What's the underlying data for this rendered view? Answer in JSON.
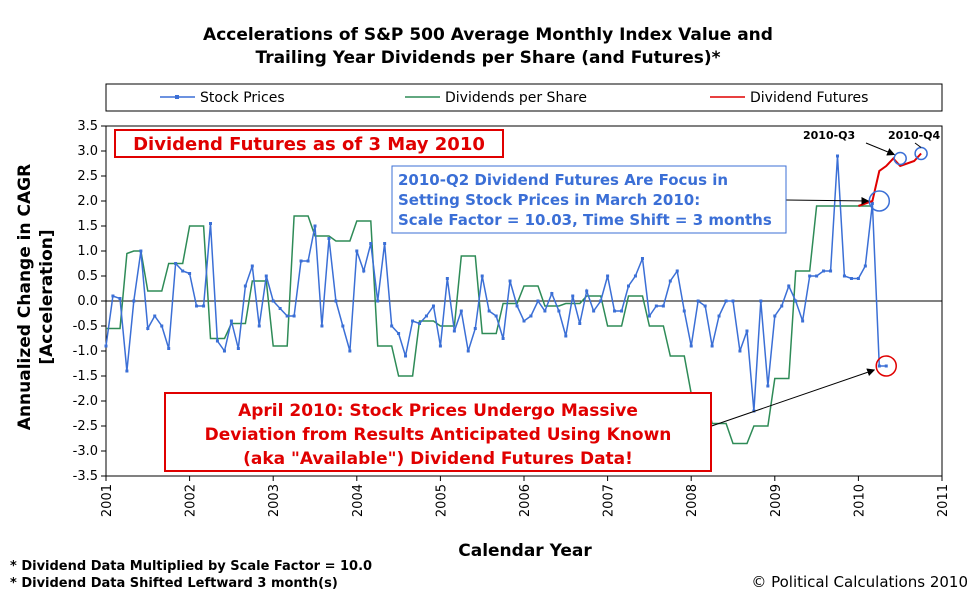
{
  "title_line1": "Accelerations of S&P 500 Average Monthly Index Value and",
  "title_line2": "Trailing Year Dividends per Share (and Futures)*",
  "legend": [
    {
      "label": "Stock Prices",
      "color": "#3b6fd6",
      "marker": true
    },
    {
      "label": "Dividends per Share",
      "color": "#2e8b57",
      "marker": false
    },
    {
      "label": "Dividend Futures",
      "color": "#e00000",
      "marker": false
    }
  ],
  "ylabel_line1": "Annualized Change in CAGR",
  "ylabel_line2": "[Acceleration]",
  "xlabel": "Calendar Year",
  "footnotes": [
    "* Dividend Data Multiplied by Scale Factor = 10.0",
    "* Dividend Data Shifted Leftward 3 month(s)"
  ],
  "credit": "© Political Calculations 2010",
  "annotations": {
    "futures_date": "Dividend Futures as of 3 May 2010",
    "q2_focus": [
      "2010-Q2 Dividend Futures Are Focus in",
      "Setting Stock Prices in March 2010:",
      "Scale Factor = 10.03, Time Shift = 3 months"
    ],
    "april": [
      "April 2010: Stock Prices Undergo Massive",
      "Deviation from Results Anticipated Using Known",
      "(aka \"Available\") Dividend Futures Data!"
    ],
    "q3": "2010-Q3",
    "q4": "2010-Q4"
  },
  "chart_data": {
    "type": "line",
    "title": "Accelerations of S&P 500 Average Monthly Index Value and Trailing Year Dividends per Share (and Futures)*",
    "xlabel": "Calendar Year",
    "ylabel": "Annualized Change in CAGR [Acceleration]",
    "xlim": [
      2001,
      2011
    ],
    "ylim": [
      -3.5,
      3.5
    ],
    "xticks": [
      "2001",
      "2002",
      "2003",
      "2004",
      "2005",
      "2006",
      "2007",
      "2008",
      "2009",
      "2010",
      "2011"
    ],
    "yticks": [
      "-3.5",
      "-3.0",
      "-2.5",
      "-2.0",
      "-1.5",
      "-1.0",
      "-0.5",
      "0.0",
      "0.5",
      "1.0",
      "1.5",
      "2.0",
      "2.5",
      "3.0",
      "3.5"
    ],
    "series": [
      {
        "name": "Stock Prices",
        "color": "#3b6fd6",
        "x": [
          2001.0,
          2001.083,
          2001.167,
          2001.25,
          2001.333,
          2001.417,
          2001.5,
          2001.583,
          2001.667,
          2001.75,
          2001.833,
          2001.917,
          2002.0,
          2002.083,
          2002.167,
          2002.25,
          2002.333,
          2002.417,
          2002.5,
          2002.583,
          2002.667,
          2002.75,
          2002.833,
          2002.917,
          2003.0,
          2003.083,
          2003.167,
          2003.25,
          2003.333,
          2003.417,
          2003.5,
          2003.583,
          2003.667,
          2003.75,
          2003.833,
          2003.917,
          2004.0,
          2004.083,
          2004.167,
          2004.25,
          2004.333,
          2004.417,
          2004.5,
          2004.583,
          2004.667,
          2004.75,
          2004.833,
          2004.917,
          2005.0,
          2005.083,
          2005.167,
          2005.25,
          2005.333,
          2005.417,
          2005.5,
          2005.583,
          2005.667,
          2005.75,
          2005.833,
          2005.917,
          2006.0,
          2006.083,
          2006.167,
          2006.25,
          2006.333,
          2006.417,
          2006.5,
          2006.583,
          2006.667,
          2006.75,
          2006.833,
          2006.917,
          2007.0,
          2007.083,
          2007.167,
          2007.25,
          2007.333,
          2007.417,
          2007.5,
          2007.583,
          2007.667,
          2007.75,
          2007.833,
          2007.917,
          2008.0,
          2008.083,
          2008.167,
          2008.25,
          2008.333,
          2008.417,
          2008.5,
          2008.583,
          2008.667,
          2008.75,
          2008.833,
          2008.917,
          2009.0,
          2009.083,
          2009.167,
          2009.25,
          2009.333,
          2009.417,
          2009.5,
          2009.583,
          2009.667,
          2009.75,
          2009.833,
          2009.917,
          2010.0,
          2010.083,
          2010.167,
          2010.25,
          2010.333
        ],
        "y": [
          -0.9,
          0.1,
          0.05,
          -1.4,
          0.0,
          1.0,
          -0.55,
          -0.3,
          -0.5,
          -0.95,
          0.75,
          0.6,
          0.55,
          -0.1,
          -0.1,
          1.55,
          -0.8,
          -1.0,
          -0.4,
          -0.95,
          0.3,
          0.7,
          -0.5,
          0.5,
          0.0,
          -0.15,
          -0.3,
          -0.3,
          0.8,
          0.8,
          1.5,
          -0.5,
          1.25,
          0.0,
          -0.5,
          -1.0,
          1.0,
          0.6,
          1.15,
          0.0,
          1.15,
          -0.5,
          -0.65,
          -1.1,
          -0.4,
          -0.45,
          -0.3,
          -0.1,
          -0.9,
          0.45,
          -0.6,
          -0.2,
          -1.0,
          -0.55,
          0.5,
          -0.2,
          -0.3,
          -0.75,
          0.4,
          -0.1,
          -0.4,
          -0.3,
          0.0,
          -0.2,
          0.15,
          -0.2,
          -0.7,
          0.1,
          -0.45,
          0.2,
          -0.2,
          0.0,
          0.5,
          -0.2,
          -0.2,
          0.3,
          0.5,
          0.85,
          -0.3,
          -0.1,
          -0.1,
          0.4,
          0.6,
          -0.2,
          -0.9,
          0.0,
          -0.1,
          -0.9,
          -0.3,
          0.0,
          0.0,
          -1.0,
          -0.6,
          -2.2,
          0.0,
          -1.7,
          -0.3,
          -0.1,
          0.3,
          0.0,
          -0.4,
          0.5,
          0.5,
          0.6,
          0.6,
          2.9,
          0.5,
          0.45,
          0.45,
          0.7,
          1.95,
          -1.3,
          -1.3
        ],
        "markers": true
      },
      {
        "name": "Dividends per Share",
        "color": "#2e8b57",
        "x": [
          2001.0,
          2001.083,
          2001.167,
          2001.25,
          2001.333,
          2001.417,
          2001.5,
          2001.583,
          2001.667,
          2001.75,
          2001.833,
          2001.917,
          2002.0,
          2002.083,
          2002.167,
          2002.25,
          2002.333,
          2002.417,
          2002.5,
          2002.583,
          2002.667,
          2002.75,
          2002.833,
          2002.917,
          2003.0,
          2003.083,
          2003.167,
          2003.25,
          2003.333,
          2003.417,
          2003.5,
          2003.583,
          2003.667,
          2003.75,
          2003.833,
          2003.917,
          2004.0,
          2004.083,
          2004.167,
          2004.25,
          2004.333,
          2004.417,
          2004.5,
          2004.583,
          2004.667,
          2004.75,
          2004.833,
          2004.917,
          2005.0,
          2005.083,
          2005.167,
          2005.25,
          2005.333,
          2005.417,
          2005.5,
          2005.583,
          2005.667,
          2005.75,
          2005.833,
          2005.917,
          2006.0,
          2006.083,
          2006.167,
          2006.25,
          2006.333,
          2006.417,
          2006.5,
          2006.583,
          2006.667,
          2006.75,
          2006.833,
          2006.917,
          2007.0,
          2007.083,
          2007.167,
          2007.25,
          2007.333,
          2007.417,
          2007.5,
          2007.583,
          2007.667,
          2007.75,
          2007.833,
          2007.917,
          2008.0,
          2008.083,
          2008.167,
          2008.25,
          2008.333,
          2008.417,
          2008.5,
          2008.583,
          2008.667,
          2008.75,
          2008.833,
          2008.917,
          2009.0,
          2009.083,
          2009.167,
          2009.25,
          2009.333,
          2009.417,
          2009.5,
          2009.583,
          2009.667,
          2009.75,
          2009.833,
          2009.917,
          2010.0,
          2010.083,
          2010.167
        ],
        "y": [
          -0.55,
          -0.55,
          -0.55,
          0.95,
          1.0,
          1.0,
          0.2,
          0.2,
          0.2,
          0.75,
          0.75,
          0.75,
          1.5,
          1.5,
          1.5,
          -0.75,
          -0.75,
          -0.75,
          -0.45,
          -0.45,
          -0.45,
          0.4,
          0.4,
          0.4,
          -0.9,
          -0.9,
          -0.9,
          1.7,
          1.7,
          1.7,
          1.3,
          1.3,
          1.3,
          1.2,
          1.2,
          1.2,
          1.6,
          1.6,
          1.6,
          -0.9,
          -0.9,
          -0.9,
          -1.5,
          -1.5,
          -1.5,
          -0.4,
          -0.4,
          -0.4,
          -0.5,
          -0.5,
          -0.5,
          0.9,
          0.9,
          0.9,
          -0.65,
          -0.65,
          -0.65,
          -0.05,
          -0.05,
          -0.05,
          0.3,
          0.3,
          0.3,
          -0.1,
          -0.1,
          -0.1,
          -0.05,
          -0.05,
          -0.05,
          0.1,
          0.1,
          0.1,
          -0.5,
          -0.5,
          -0.5,
          0.1,
          0.1,
          0.1,
          -0.5,
          -0.5,
          -0.5,
          -1.1,
          -1.1,
          -1.1,
          -1.85,
          -1.85,
          -1.85,
          -2.45,
          -2.45,
          -2.45,
          -2.85,
          -2.85,
          -2.85,
          -2.5,
          -2.5,
          -2.5,
          -1.55,
          -1.55,
          -1.55,
          0.6,
          0.6,
          0.6,
          1.9,
          1.9,
          1.9,
          1.9,
          1.9,
          1.9,
          1.9,
          1.9,
          1.9
        ],
        "markers": false
      },
      {
        "name": "Dividend Futures",
        "color": "#e00000",
        "x": [
          2010.0,
          2010.083,
          2010.167,
          2010.25,
          2010.333,
          2010.417,
          2010.5,
          2010.583,
          2010.667,
          2010.75
        ],
        "y": [
          1.9,
          1.95,
          2.0,
          2.6,
          2.7,
          2.85,
          2.7,
          2.75,
          2.8,
          2.95
        ],
        "markers": false
      }
    ],
    "highlight_points": [
      {
        "x": 2010.25,
        "y": 2.0,
        "color": "#3b6fd6"
      },
      {
        "x": 2010.333,
        "y": -1.3,
        "color": "#e00000"
      },
      {
        "x": 2010.5,
        "y": 2.85,
        "color": "#3b6fd6"
      },
      {
        "x": 2010.75,
        "y": 2.95,
        "color": "#3b6fd6"
      }
    ]
  }
}
